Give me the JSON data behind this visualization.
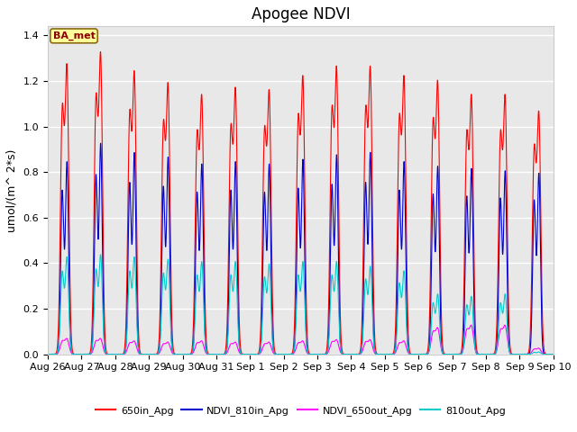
{
  "title": "Apogee NDVI",
  "ylabel": "umol/(m^ 2*s)",
  "ylim": [
    0,
    1.44
  ],
  "yticks": [
    0.0,
    0.2,
    0.4,
    0.6,
    0.8,
    1.0,
    1.2,
    1.4
  ],
  "fig_bg_color": "#ffffff",
  "plot_bg_color": "#e8e8e8",
  "annotation_text": "BA_met",
  "annotation_bg": "#ffff99",
  "annotation_border": "#8b6914",
  "series": [
    {
      "label": "650in_Apg",
      "color": "#ff0000",
      "peak_values": [
        1.23,
        1.28,
        1.2,
        1.15,
        1.1,
        1.13,
        1.12,
        1.18,
        1.22,
        1.22,
        1.18,
        1.16,
        1.1,
        1.1,
        1.03
      ],
      "sigma": 0.055
    },
    {
      "label": "NDVI_810in_Apg",
      "color": "#0000cc",
      "peak_values": [
        0.84,
        0.92,
        0.88,
        0.86,
        0.83,
        0.84,
        0.83,
        0.85,
        0.87,
        0.88,
        0.84,
        0.82,
        0.81,
        0.8,
        0.79
      ],
      "sigma": 0.045
    },
    {
      "label": "NDVI_650out_Apg",
      "color": "#ff00ff",
      "peak_values": [
        0.065,
        0.065,
        0.055,
        0.05,
        0.055,
        0.05,
        0.05,
        0.055,
        0.06,
        0.06,
        0.055,
        0.11,
        0.12,
        0.12,
        0.025
      ],
      "sigma": 0.06
    },
    {
      "label": "810out_Apg",
      "color": "#00cccc",
      "peak_values": [
        0.42,
        0.43,
        0.42,
        0.41,
        0.4,
        0.4,
        0.39,
        0.4,
        0.4,
        0.38,
        0.36,
        0.26,
        0.25,
        0.26,
        0.01
      ],
      "sigma": 0.05
    }
  ],
  "num_days": 15,
  "x_tick_labels": [
    "Aug 26",
    "Aug 27",
    "Aug 28",
    "Aug 29",
    "Aug 30",
    "Aug 31",
    "Sep 1",
    "Sep 2",
    "Sep 3",
    "Sep 4",
    "Sep 5",
    "Sep 6",
    "Sep 7",
    "Sep 8",
    "Sep 9",
    "Sep 10"
  ],
  "x_tick_positions": [
    0,
    1,
    2,
    3,
    4,
    5,
    6,
    7,
    8,
    9,
    10,
    11,
    12,
    13,
    14,
    15
  ],
  "grid_color": "#ffffff",
  "title_fontsize": 12,
  "axis_fontsize": 9,
  "tick_fontsize": 8
}
